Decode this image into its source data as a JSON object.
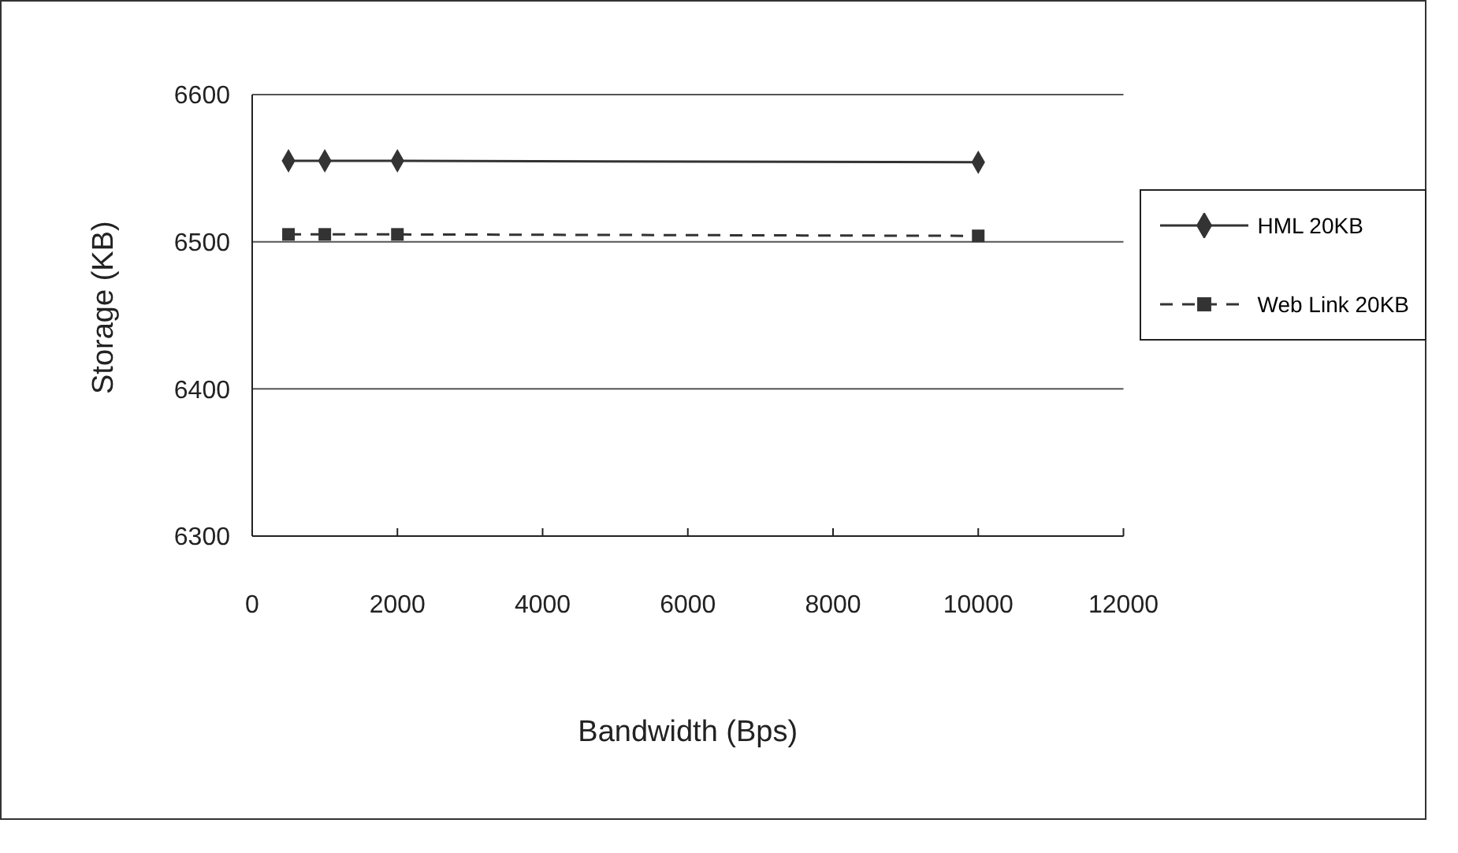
{
  "chart_data": {
    "type": "line",
    "xlabel": "Bandwidth (Bps)",
    "ylabel": "Storage (KB)",
    "x": [
      500,
      1000,
      2000,
      10000
    ],
    "series": [
      {
        "name": "HML 20KB",
        "color": "#333333",
        "values": [
          6555,
          6555,
          6555,
          6554
        ],
        "marker": "diamond",
        "line_style": "solid"
      },
      {
        "name": "Web Link 20KB",
        "color": "#333333",
        "values": [
          6505,
          6505,
          6505,
          6504
        ],
        "marker": "square",
        "line_style": "dashed"
      }
    ],
    "xlim": [
      0,
      12000
    ],
    "xticks": [
      0,
      2000,
      4000,
      6000,
      8000,
      10000,
      12000
    ],
    "ylim": [
      6300,
      6600
    ],
    "yticks": [
      6300,
      6400,
      6500,
      6600
    ],
    "grid": "y",
    "legend": "right"
  }
}
